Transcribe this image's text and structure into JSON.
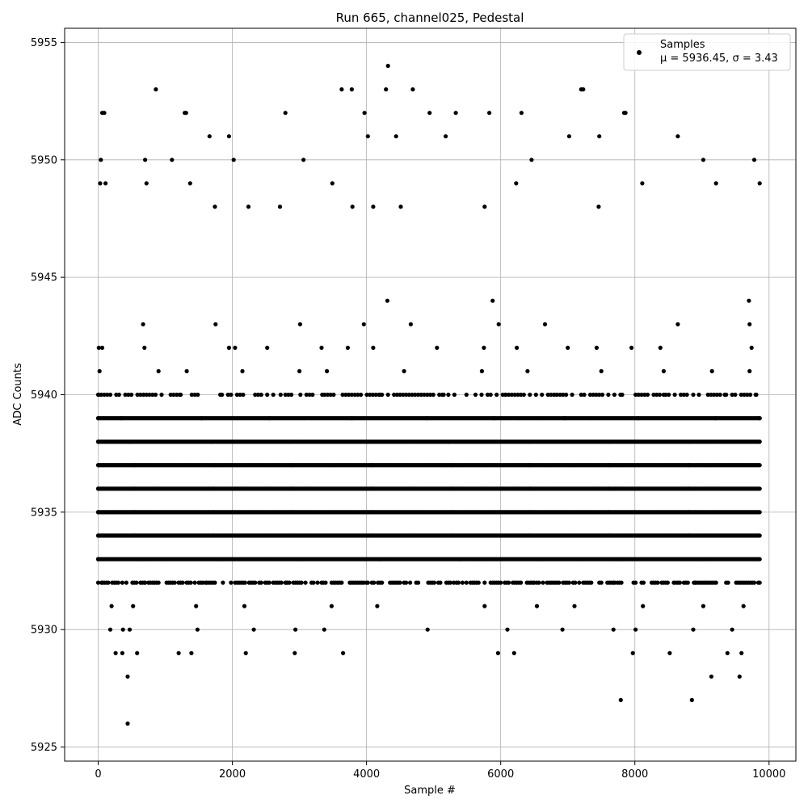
{
  "chart_data": {
    "type": "scatter",
    "title": "Run 665, channel025, Pedestal",
    "xlabel": "Sample #",
    "ylabel": "ADC Counts",
    "xlim": [
      -500,
      10400
    ],
    "ylim": [
      5924.4,
      5955.6
    ],
    "xticks": [
      0,
      2000,
      4000,
      6000,
      8000,
      10000
    ],
    "yticks": [
      5925,
      5930,
      5935,
      5940,
      5945,
      5950,
      5955
    ],
    "grid": true,
    "marker_color": "#000000",
    "legend": {
      "placement": "top-right",
      "entries": [
        {
          "name": "Samples",
          "stats": "μ = 5936.45, σ = 3.43"
        }
      ]
    },
    "series": [
      {
        "name": "Samples",
        "x_range": [
          0,
          9860
        ],
        "points": [
          [
            60,
            5952
          ],
          [
            90,
            5952
          ],
          [
            860,
            5953
          ],
          [
            1290,
            5952
          ],
          [
            1310,
            5952
          ],
          [
            2790,
            5952
          ],
          [
            3630,
            5953
          ],
          [
            3780,
            5953
          ],
          [
            4290,
            5953
          ],
          [
            4320,
            5954
          ],
          [
            4690,
            5953
          ],
          [
            4940,
            5952
          ],
          [
            5830,
            5952
          ],
          [
            6310,
            5952
          ],
          [
            7200,
            5953
          ],
          [
            7230,
            5953
          ],
          [
            7840,
            5952
          ],
          [
            7860,
            5952
          ],
          [
            8640,
            5951
          ],
          [
            40,
            5950
          ],
          [
            700,
            5950
          ],
          [
            1100,
            5950
          ],
          [
            1660,
            5951
          ],
          [
            1950,
            5951
          ],
          [
            2020,
            5950
          ],
          [
            3060,
            5950
          ],
          [
            3970,
            5952
          ],
          [
            4020,
            5951
          ],
          [
            4440,
            5951
          ],
          [
            5180,
            5951
          ],
          [
            5330,
            5952
          ],
          [
            6460,
            5950
          ],
          [
            7020,
            5951
          ],
          [
            7470,
            5951
          ],
          [
            9020,
            5950
          ],
          [
            9780,
            5950
          ],
          [
            30,
            5949
          ],
          [
            110,
            5949
          ],
          [
            720,
            5949
          ],
          [
            1370,
            5949
          ],
          [
            1740,
            5948
          ],
          [
            2240,
            5948
          ],
          [
            2710,
            5948
          ],
          [
            3490,
            5949
          ],
          [
            3790,
            5948
          ],
          [
            4100,
            5948
          ],
          [
            4510,
            5948
          ],
          [
            5760,
            5948
          ],
          [
            6230,
            5949
          ],
          [
            7460,
            5948
          ],
          [
            8110,
            5949
          ],
          [
            9210,
            5949
          ],
          [
            9860,
            5949
          ],
          [
            4310,
            5944
          ],
          [
            5880,
            5944
          ],
          [
            9700,
            5944
          ],
          [
            670,
            5943
          ],
          [
            1750,
            5943
          ],
          [
            3010,
            5943
          ],
          [
            3960,
            5943
          ],
          [
            4660,
            5943
          ],
          [
            5970,
            5943
          ],
          [
            6660,
            5943
          ],
          [
            8640,
            5943
          ],
          [
            9710,
            5943
          ],
          [
            10,
            5942
          ],
          [
            60,
            5942
          ],
          [
            690,
            5942
          ],
          [
            1950,
            5942
          ],
          [
            2040,
            5942
          ],
          [
            2520,
            5942
          ],
          [
            3330,
            5942
          ],
          [
            3720,
            5942
          ],
          [
            4100,
            5942
          ],
          [
            5050,
            5942
          ],
          [
            5750,
            5942
          ],
          [
            6240,
            5942
          ],
          [
            7000,
            5942
          ],
          [
            7430,
            5942
          ],
          [
            7950,
            5942
          ],
          [
            8380,
            5942
          ],
          [
            9740,
            5942
          ],
          [
            20,
            5941
          ],
          [
            900,
            5941
          ],
          [
            1320,
            5941
          ],
          [
            2150,
            5941
          ],
          [
            3000,
            5941
          ],
          [
            3410,
            5941
          ],
          [
            4560,
            5941
          ],
          [
            5720,
            5941
          ],
          [
            6400,
            5941
          ],
          [
            7500,
            5941
          ],
          [
            8430,
            5941
          ],
          [
            9150,
            5941
          ],
          [
            9710,
            5941
          ],
          [
            10,
            5940
          ],
          [
            310,
            5940
          ],
          [
            1230,
            5940
          ],
          [
            1820,
            5940
          ],
          [
            2720,
            5940
          ],
          [
            3340,
            5940
          ],
          [
            4200,
            5940
          ],
          [
            5150,
            5940
          ],
          [
            6070,
            5940
          ],
          [
            6800,
            5940
          ],
          [
            7810,
            5940
          ],
          [
            8430,
            5940
          ],
          [
            8870,
            5940
          ],
          [
            9340,
            5940
          ],
          [
            9800,
            5940
          ],
          [
            0,
            5939
          ],
          [
            350,
            5939
          ],
          [
            1540,
            5939
          ],
          [
            2550,
            5939
          ],
          [
            3780,
            5939
          ],
          [
            4900,
            5939
          ],
          [
            5900,
            5939
          ],
          [
            6960,
            5939
          ],
          [
            8050,
            5939
          ],
          [
            9200,
            5939
          ],
          [
            9860,
            5939
          ],
          [
            0,
            5938
          ],
          [
            480,
            5938
          ],
          [
            1680,
            5938
          ],
          [
            2830,
            5938
          ],
          [
            4010,
            5938
          ],
          [
            5230,
            5938
          ],
          [
            6430,
            5938
          ],
          [
            7620,
            5938
          ],
          [
            8810,
            5938
          ],
          [
            9860,
            5938
          ],
          [
            0,
            5937
          ],
          [
            540,
            5937
          ],
          [
            1720,
            5937
          ],
          [
            2900,
            5937
          ],
          [
            4080,
            5937
          ],
          [
            5260,
            5937
          ],
          [
            6440,
            5937
          ],
          [
            7620,
            5937
          ],
          [
            8800,
            5937
          ],
          [
            9860,
            5937
          ],
          [
            0,
            5936
          ],
          [
            540,
            5936
          ],
          [
            1720,
            5936
          ],
          [
            2900,
            5936
          ],
          [
            4080,
            5936
          ],
          [
            5260,
            5936
          ],
          [
            6440,
            5936
          ],
          [
            7620,
            5936
          ],
          [
            8800,
            5936
          ],
          [
            9860,
            5936
          ],
          [
            0,
            5935
          ],
          [
            540,
            5935
          ],
          [
            1720,
            5935
          ],
          [
            2900,
            5935
          ],
          [
            4080,
            5935
          ],
          [
            5260,
            5935
          ],
          [
            6440,
            5935
          ],
          [
            7620,
            5935
          ],
          [
            8800,
            5935
          ],
          [
            9860,
            5935
          ],
          [
            0,
            5934
          ],
          [
            540,
            5934
          ],
          [
            1720,
            5934
          ],
          [
            2900,
            5934
          ],
          [
            4080,
            5934
          ],
          [
            5260,
            5934
          ],
          [
            6440,
            5934
          ],
          [
            7620,
            5934
          ],
          [
            8800,
            5934
          ],
          [
            9860,
            5934
          ],
          [
            0,
            5933
          ],
          [
            600,
            5933
          ],
          [
            1800,
            5933
          ],
          [
            3000,
            5933
          ],
          [
            4200,
            5933
          ],
          [
            5400,
            5933
          ],
          [
            6600,
            5933
          ],
          [
            7800,
            5933
          ],
          [
            9000,
            5933
          ],
          [
            9860,
            5933
          ],
          [
            50,
            5932
          ],
          [
            700,
            5932
          ],
          [
            1600,
            5932
          ],
          [
            2800,
            5932
          ],
          [
            4000,
            5932
          ],
          [
            5300,
            5932
          ],
          [
            6500,
            5932
          ],
          [
            7700,
            5932
          ],
          [
            8900,
            5932
          ],
          [
            9860,
            5932
          ],
          [
            200,
            5931
          ],
          [
            520,
            5931
          ],
          [
            1460,
            5931
          ],
          [
            2180,
            5931
          ],
          [
            3480,
            5931
          ],
          [
            4160,
            5931
          ],
          [
            5760,
            5931
          ],
          [
            6540,
            5931
          ],
          [
            7100,
            5931
          ],
          [
            8120,
            5931
          ],
          [
            9020,
            5931
          ],
          [
            9620,
            5931
          ],
          [
            180,
            5930
          ],
          [
            370,
            5930
          ],
          [
            470,
            5930
          ],
          [
            1480,
            5930
          ],
          [
            2320,
            5930
          ],
          [
            2940,
            5930
          ],
          [
            3370,
            5930
          ],
          [
            4910,
            5930
          ],
          [
            6100,
            5930
          ],
          [
            6920,
            5930
          ],
          [
            7680,
            5930
          ],
          [
            8010,
            5930
          ],
          [
            8870,
            5930
          ],
          [
            9450,
            5930
          ],
          [
            260,
            5929
          ],
          [
            360,
            5929
          ],
          [
            580,
            5929
          ],
          [
            1200,
            5929
          ],
          [
            1390,
            5929
          ],
          [
            2200,
            5929
          ],
          [
            2930,
            5929
          ],
          [
            3650,
            5929
          ],
          [
            5960,
            5929
          ],
          [
            6200,
            5929
          ],
          [
            7970,
            5929
          ],
          [
            8520,
            5929
          ],
          [
            9380,
            5929
          ],
          [
            9590,
            5929
          ],
          [
            440,
            5928
          ],
          [
            9140,
            5928
          ],
          [
            9560,
            5928
          ],
          [
            7790,
            5927
          ],
          [
            8850,
            5927
          ],
          [
            440,
            5926
          ]
        ]
      }
    ]
  }
}
